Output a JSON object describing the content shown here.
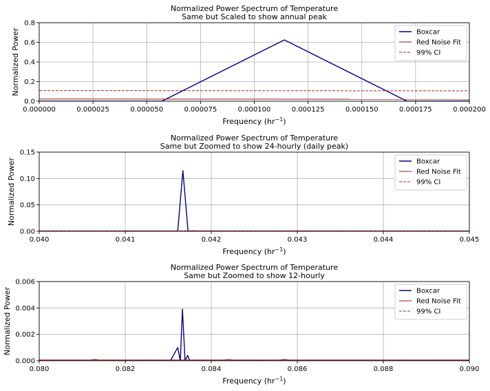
{
  "chart_data": [
    {
      "type": "line",
      "title": "Normalized Power Spectrum of Temperature",
      "subtitle": "Same but Scaled to show annual peak",
      "xlabel_prefix": "Frequency (hr",
      "xlabel_sup": "−1",
      "xlabel_suffix": ")",
      "ylabel": "Normalized Power",
      "xlim": [
        0,
        0.0002
      ],
      "ylim": [
        0,
        0.8
      ],
      "grid": true,
      "legend_position": "top-right",
      "x_ticks": [
        0,
        2.5e-05,
        5e-05,
        7.5e-05,
        0.0001,
        0.000125,
        0.00015,
        0.000175,
        0.0002
      ],
      "x_tick_labels": [
        "0.000000",
        "0.000025",
        "0.000050",
        "0.000075",
        "0.000100",
        "0.000125",
        "0.000150",
        "0.000175",
        "0.000200"
      ],
      "y_ticks": [
        0,
        0.2,
        0.4,
        0.6,
        0.8
      ],
      "y_tick_labels": [
        "0.0",
        "0.2",
        "0.4",
        "0.6",
        "0.8"
      ],
      "series": [
        {
          "name": "Boxcar",
          "color": "#000080",
          "style": "solid",
          "x": [
            0,
            5.7e-05,
            0.000114,
            0.000171,
            0.0002
          ],
          "y": [
            0,
            0,
            0.625,
            0,
            0.002
          ]
        },
        {
          "name": "Red Noise Fit",
          "color": "#8b1a1a",
          "style": "solid",
          "x": [
            0,
            0.0002
          ],
          "y": [
            0.022,
            0.02
          ]
        },
        {
          "name": "99% CI",
          "color": "#b22222",
          "style": "dashed",
          "x": [
            0,
            0.0002
          ],
          "y": [
            0.108,
            0.106
          ]
        }
      ]
    },
    {
      "type": "line",
      "title": "Normalized Power Spectrum of Temperature",
      "subtitle": "Same but Zoomed to show 24-hourly (daily peak)",
      "xlabel_prefix": "Frequency (hr",
      "xlabel_sup": "−1",
      "xlabel_suffix": ")",
      "ylabel": "Normalized Power",
      "xlim": [
        0.04,
        0.045
      ],
      "ylim": [
        0,
        0.15
      ],
      "grid": true,
      "legend_position": "top-right",
      "x_ticks": [
        0.04,
        0.041,
        0.042,
        0.043,
        0.044,
        0.045
      ],
      "x_tick_labels": [
        "0.040",
        "0.041",
        "0.042",
        "0.043",
        "0.044",
        "0.045"
      ],
      "y_ticks": [
        0,
        0.05,
        0.1,
        0.15
      ],
      "y_tick_labels": [
        "0.00",
        "0.05",
        "0.10",
        "0.15"
      ],
      "series": [
        {
          "name": "Boxcar",
          "color": "#000080",
          "style": "solid",
          "x": [
            0.04,
            0.04161,
            0.04167,
            0.04173,
            0.045
          ],
          "y": [
            0,
            0,
            0.115,
            0,
            0
          ]
        },
        {
          "name": "Red Noise Fit",
          "color": "#8b1a1a",
          "style": "solid",
          "x": [
            0.04,
            0.041,
            0.0411,
            0.0412,
            0.0417,
            0.0418,
            0.0419,
            0.0428,
            0.0429,
            0.0443,
            0.0444,
            0.0445,
            0.045
          ],
          "y": [
            0.0003,
            0.0003,
            0.0008,
            0.0003,
            0.0003,
            0.0012,
            0.0003,
            0.0003,
            0.0007,
            0.0003,
            0.0007,
            0.0003,
            0.0003
          ]
        },
        {
          "name": "99% CI",
          "color": "#b22222",
          "style": "dashed",
          "x": [
            0.04,
            0.045
          ],
          "y": [
            0.001,
            0.001
          ]
        }
      ]
    },
    {
      "type": "line",
      "title": "Normalized Power Spectrum of Temperature",
      "subtitle": "Same but Zoomed to show 12-hourly",
      "xlabel_prefix": "Frequency (hr",
      "xlabel_sup": "−1",
      "xlabel_suffix": ")",
      "ylabel": "Normalized Power",
      "xlim": [
        0.08,
        0.09
      ],
      "ylim": [
        0,
        0.006
      ],
      "grid": true,
      "legend_position": "top-right",
      "x_ticks": [
        0.08,
        0.082,
        0.084,
        0.086,
        0.088,
        0.09
      ],
      "x_tick_labels": [
        "0.080",
        "0.082",
        "0.084",
        "0.086",
        "0.088",
        "0.090"
      ],
      "y_ticks": [
        0,
        0.002,
        0.004,
        0.006
      ],
      "y_tick_labels": [
        "0.000",
        "0.002",
        "0.004",
        "0.006"
      ],
      "series": [
        {
          "name": "Boxcar",
          "color": "#000080",
          "style": "solid",
          "x": [
            0.08,
            0.08305,
            0.08322,
            0.08328,
            0.08333,
            0.08339,
            0.08345,
            0.0835,
            0.08356,
            0.09
          ],
          "y": [
            0,
            0,
            0.001,
            0,
            0.0039,
            0,
            0.0004,
            0,
            0,
            0
          ]
        },
        {
          "name": "Red Noise Fit",
          "color": "#8b1a1a",
          "style": "solid",
          "x": [
            0.08,
            0.0812,
            0.0813,
            0.0814,
            0.0843,
            0.0844,
            0.0845,
            0.0856,
            0.0857,
            0.0858,
            0.09
          ],
          "y": [
            5e-05,
            5e-05,
            0.0001,
            5e-05,
            5e-05,
            0.0001,
            5e-05,
            5e-05,
            0.0001,
            5e-05,
            5e-05
          ]
        },
        {
          "name": "99% CI",
          "color": "#b22222",
          "style": "dashed",
          "x": [
            0.08,
            0.09
          ],
          "y": [
            6e-05,
            6e-05
          ]
        }
      ]
    }
  ]
}
